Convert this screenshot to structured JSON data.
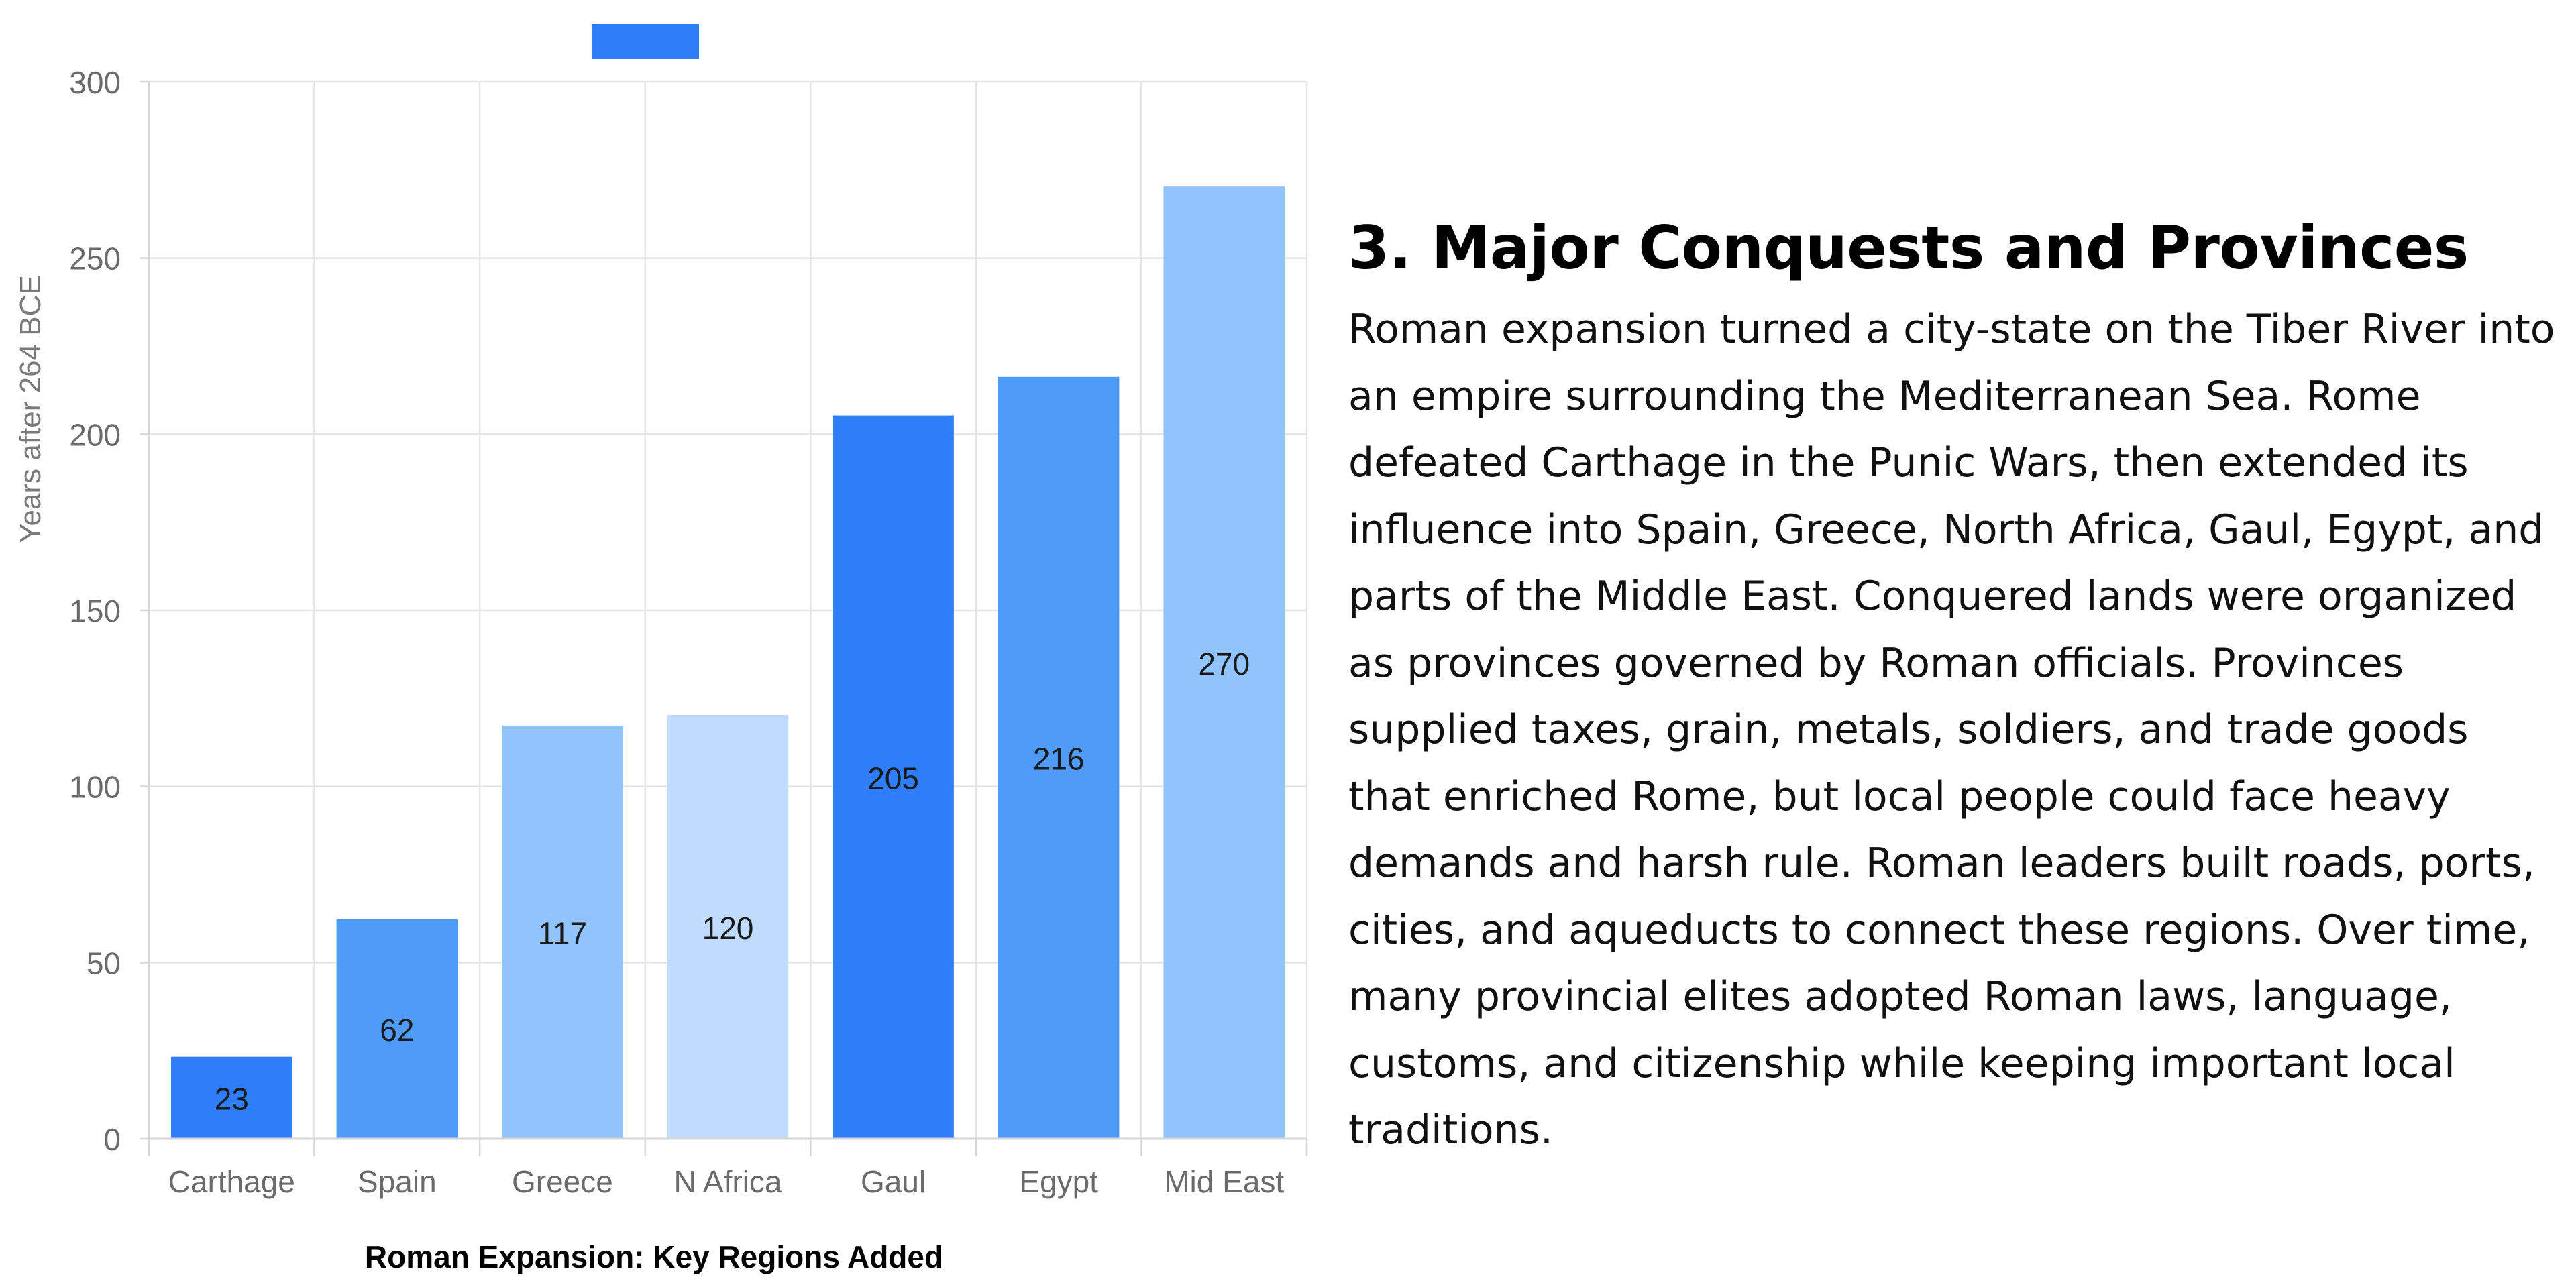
{
  "chart_data": {
    "type": "bar",
    "title": "Roman Expansion: Key Regions Added",
    "xlabel": "",
    "ylabel": "Years after 264 BCE",
    "categories": [
      "Carthage",
      "Spain",
      "Greece",
      "N Africa",
      "Gaul",
      "Egypt",
      "Mid East"
    ],
    "values": [
      23,
      62,
      117,
      120,
      205,
      216,
      270
    ],
    "bar_colors": [
      "#2f7ef7",
      "#4e9cf8",
      "#91c3fc",
      "#bfdbfd",
      "#2f7ef7",
      "#4e9cf8",
      "#91c3fc"
    ],
    "ylim": [
      0,
      300
    ],
    "yticks": [
      0,
      50,
      100,
      150,
      200,
      250,
      300
    ],
    "grid": true,
    "legend": {
      "position": "top-center",
      "color": "#2f7ef7",
      "label": ""
    }
  },
  "article": {
    "heading": "3. Major Conquests and Provinces",
    "body": "Roman expansion turned a city-state on the Tiber River into an empire surrounding the Mediterranean Sea. Rome defeated Carthage in the Punic Wars, then extended its influence into Spain, Greece, North Africa, Gaul, Egypt, and parts of the Middle East. Conquered lands were organized as provinces governed by Roman officials. Provinces supplied taxes, grain, metals, soldiers, and trade goods that enriched Rome, but local people could face heavy demands and harsh rule. Roman leaders built roads, ports, cities, and aqueducts to connect these regions. Over time, many provincial elites adopted Roman laws, language, customs, and citizenship while keeping important local traditions."
  }
}
